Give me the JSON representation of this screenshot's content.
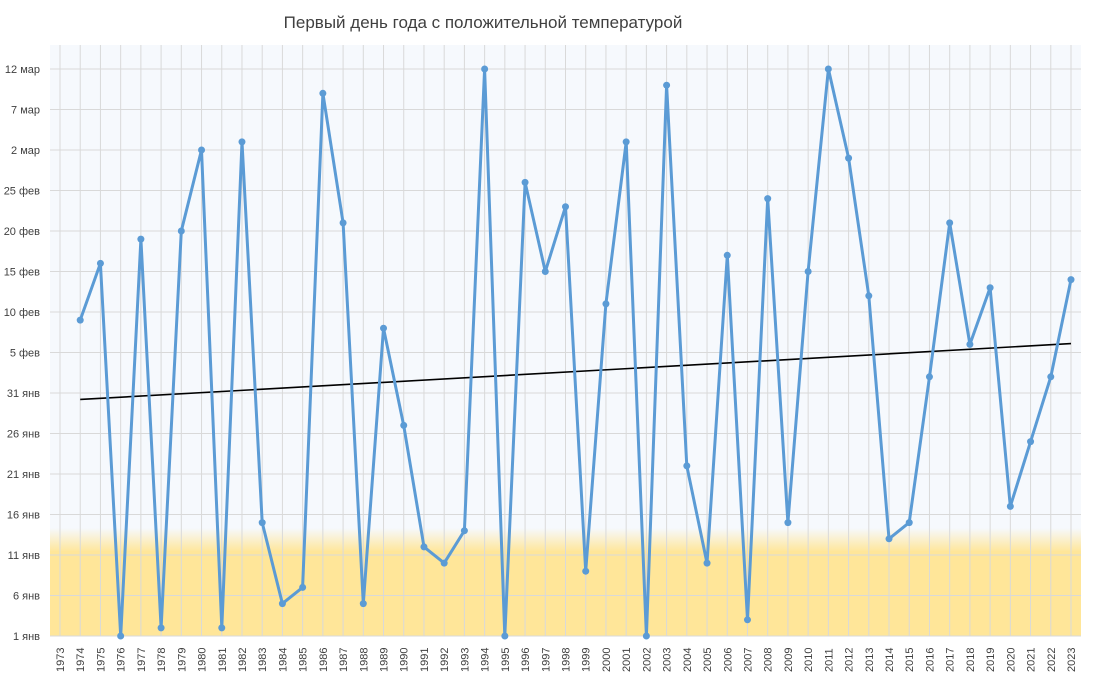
{
  "chart_data": {
    "type": "line",
    "title": "Первый день года с положительной температурой",
    "xlabel": "",
    "ylabel": "",
    "grid": true,
    "legend": "none",
    "x": [
      1973,
      1974,
      1975,
      1976,
      1977,
      1978,
      1979,
      1980,
      1981,
      1982,
      1983,
      1984,
      1985,
      1986,
      1987,
      1988,
      1989,
      1990,
      1991,
      1992,
      1993,
      1994,
      1995,
      1996,
      1997,
      1998,
      1999,
      2000,
      2001,
      2002,
      2003,
      2004,
      2005,
      2006,
      2007,
      2008,
      2009,
      2010,
      2011,
      2012,
      2013,
      2014,
      2015,
      2016,
      2017,
      2018,
      2019,
      2020,
      2021,
      2022,
      2023
    ],
    "x_tick_labels": [
      "1973",
      "1974",
      "1975",
      "1976",
      "1977",
      "1978",
      "1979",
      "1980",
      "1981",
      "1982",
      "1983",
      "1984",
      "1985",
      "1986",
      "1987",
      "1988",
      "1989",
      "1990",
      "1991",
      "1992",
      "1993",
      "1994",
      "1995",
      "1996",
      "1997",
      "1998",
      "1999",
      "2000",
      "2001",
      "2002",
      "2003",
      "2004",
      "2005",
      "2006",
      "2007",
      "2008",
      "2009",
      "2010",
      "2011",
      "2012",
      "2013",
      "2014",
      "2015",
      "2016",
      "2017",
      "2018",
      "2019",
      "2020",
      "2021",
      "2022",
      "2023"
    ],
    "y_tick_values": [
      1,
      6,
      11,
      16,
      21,
      26,
      31,
      36,
      41,
      46,
      51,
      56,
      61,
      66,
      71
    ],
    "y_tick_labels": [
      "1 янв",
      "6 янв",
      "11 янв",
      "16 янв",
      "21 янв",
      "26 янв",
      "31 янв",
      "5 фев",
      "10 фев",
      "15 фев",
      "20 фев",
      "25 фев",
      "2 мар",
      "7 мар",
      "12 мар"
    ],
    "ylim": [
      1,
      72
    ],
    "y_unit_note": "day of year",
    "series": [
      {
        "color": "#5b9bd5",
        "x": [
          1974,
          1975,
          1976,
          1977,
          1978,
          1979,
          1980,
          1981,
          1982,
          1983,
          1984,
          1985,
          1986,
          1987,
          1988,
          1989,
          1990,
          1991,
          1992,
          1993,
          1994,
          1995,
          1996,
          1997,
          1998,
          1999,
          2000,
          2001,
          2002,
          2003,
          2004,
          2005,
          2006,
          2007,
          2008,
          2009,
          2010,
          2011,
          2012,
          2013,
          2014,
          2015,
          2016,
          2017,
          2018,
          2019,
          2020,
          2021,
          2022,
          2023
        ],
        "values": [
          40,
          47,
          1,
          50,
          2,
          51,
          61,
          2,
          62,
          15,
          5,
          7,
          68,
          52,
          5,
          39,
          27,
          12,
          10,
          14,
          71,
          1,
          57,
          46,
          54,
          9,
          42,
          62,
          1,
          69,
          22,
          10,
          48,
          3,
          55,
          15,
          46,
          71,
          60,
          43,
          13,
          15,
          33,
          52,
          37,
          44,
          17,
          25,
          33,
          45
        ]
      }
    ],
    "trendline": {
      "color": "#000000",
      "x": [
        1974,
        2023
      ],
      "values": [
        30.2,
        37.1
      ]
    },
    "colors": {
      "plot_bg_upper": "#f6f9fd",
      "plot_bg_warm": "#ffe699",
      "grid": "#d9d9d9"
    }
  }
}
